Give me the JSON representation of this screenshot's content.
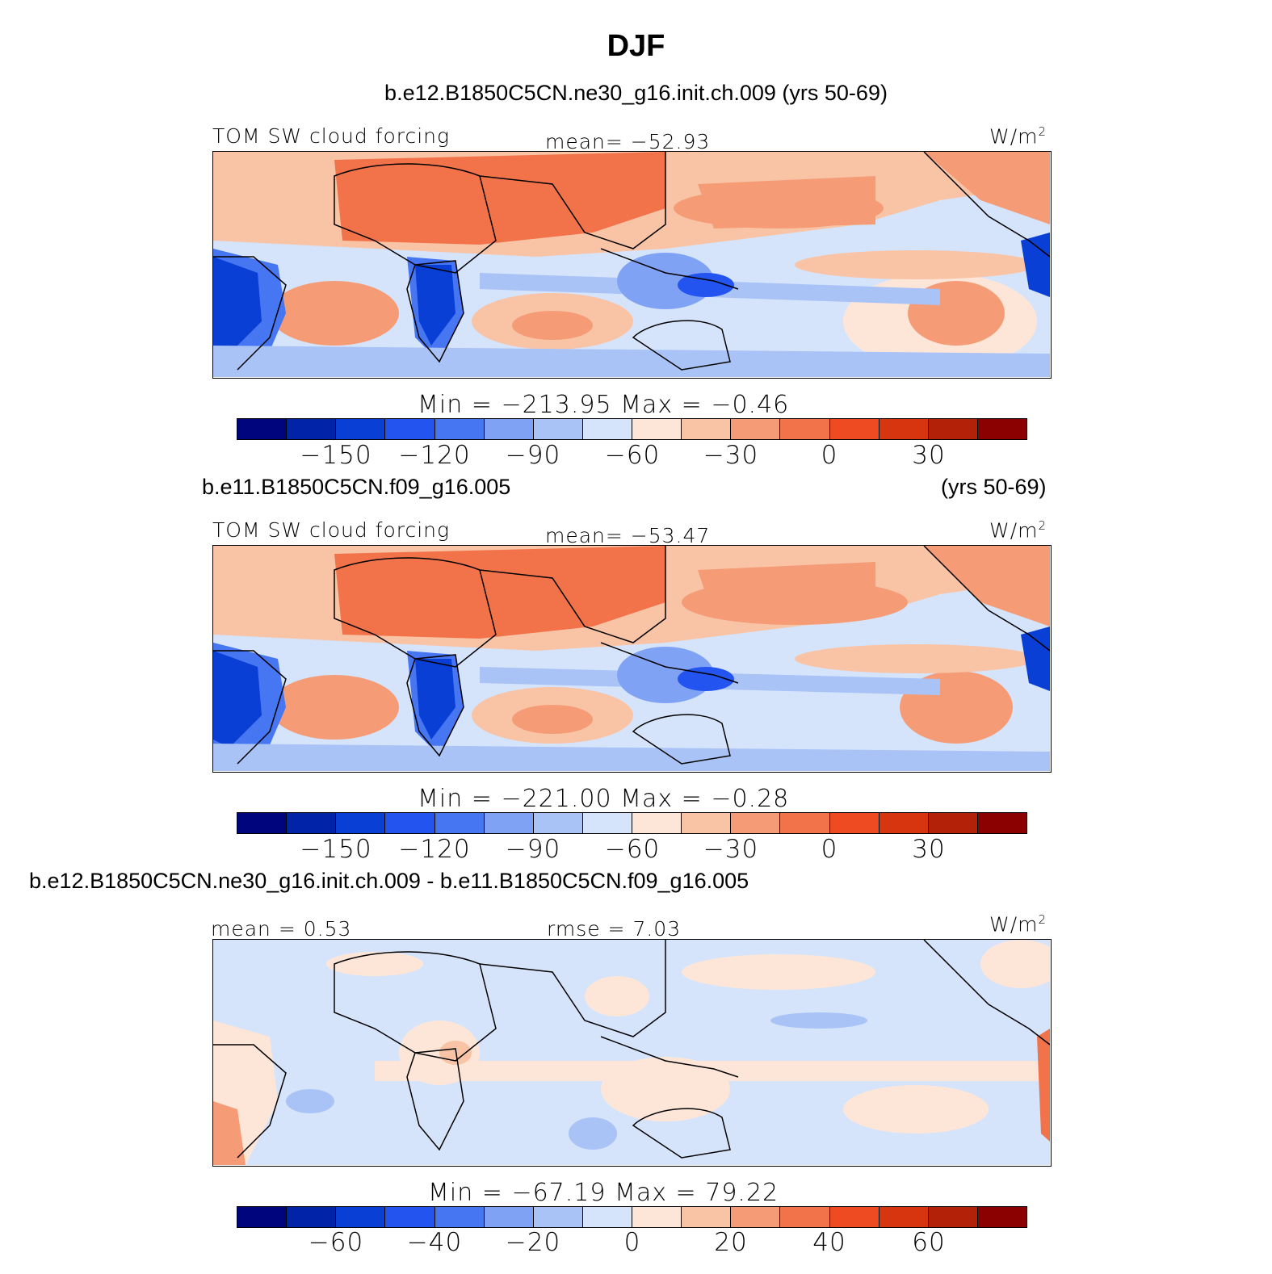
{
  "title": "DJF",
  "colors": [
    "#00047d",
    "#0023a8",
    "#0a3fd6",
    "#2454f0",
    "#4676f2",
    "#7fa2f5",
    "#a9c3f7",
    "#d6e4fb",
    "#fde6d7",
    "#f9c3a5",
    "#f59c76",
    "#f2734a",
    "#ef4b22",
    "#d63510",
    "#b32108",
    "#8b0000"
  ],
  "panels": [
    {
      "case_title": "b.e12.B1850C5CN.ne30_g16.init.ch.009 (yrs 50-69)",
      "label": "TOM SW cloud forcing",
      "mean": "mean= −52.93",
      "units": "W/m",
      "units_sup": "2",
      "minmax": "Min = −213.95 Max = −0.46",
      "ticks": [
        "−150",
        "−120",
        "−90",
        "−60",
        "−30",
        "0",
        "30"
      ]
    },
    {
      "case_title": "b.e11.B1850C5CN.f09_g16.005",
      "case_title_right": "(yrs 50-69)",
      "label": "TOM SW cloud forcing",
      "mean": "mean= −53.47",
      "units": "W/m",
      "units_sup": "2",
      "minmax": "Min = −221.00 Max = −0.28",
      "ticks": [
        "−150",
        "−120",
        "−90",
        "−60",
        "−30",
        "0",
        "30"
      ]
    },
    {
      "case_title": "b.e12.B1850C5CN.ne30_g16.init.ch.009 - b.e11.B1850C5CN.f09_g16.005",
      "mean": "mean =   0.53",
      "rmse": "rmse =   7.03",
      "units": "W/m",
      "units_sup": "2",
      "minmax": "Min = −67.19 Max =  79.22",
      "ticks": [
        "−60",
        "−40",
        "−20",
        "0",
        "20",
        "40",
        "60"
      ]
    }
  ],
  "chart_data": [
    {
      "type": "heatmap",
      "title": "TOM SW cloud forcing",
      "units": "W/m2",
      "mean": -52.93,
      "min": -213.95,
      "max": -0.46,
      "colorbar_levels": [
        -150,
        -120,
        -90,
        -60,
        -30,
        0,
        30
      ]
    },
    {
      "type": "heatmap",
      "title": "TOM SW cloud forcing",
      "units": "W/m2",
      "mean": -53.47,
      "min": -221.0,
      "max": -0.28,
      "colorbar_levels": [
        -150,
        -120,
        -90,
        -60,
        -30,
        0,
        30
      ]
    },
    {
      "type": "heatmap",
      "units": "W/m2",
      "mean": 0.53,
      "rmse": 7.03,
      "min": -67.19,
      "max": 79.22,
      "colorbar_levels": [
        -60,
        -40,
        -20,
        0,
        20,
        40,
        60
      ]
    }
  ]
}
